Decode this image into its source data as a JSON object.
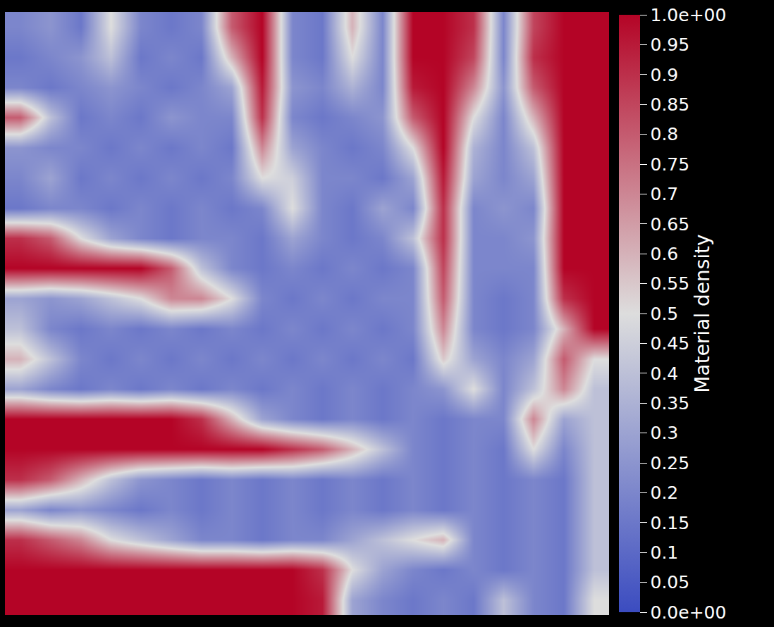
{
  "chart_data": {
    "type": "heatmap",
    "colorbar_title": "Material density",
    "tick_labels": false,
    "colors": [
      "#3b4cc0",
      "#dddddd",
      "#b40426"
    ],
    "zlim": [
      0,
      1
    ],
    "zticks": [
      {
        "value": 0,
        "label": "0.0e+00"
      },
      0.05,
      0.1,
      0.15,
      0.2,
      0.25,
      0.3,
      0.35,
      0.4,
      0.45,
      0.5,
      0.55,
      0.6,
      0.65,
      0.7,
      0.75,
      0.8,
      0.85,
      0.9,
      0.95,
      {
        "value": 1,
        "label": "1.0e+00"
      }
    ],
    "z": [
      [
        0.2,
        0.25,
        0.15,
        0.5,
        0.2,
        0.15,
        0.2,
        0.8,
        1,
        0.2,
        0.15,
        0.6,
        0.2,
        1,
        1,
        0.9,
        0.2,
        0.85,
        1,
        1
      ],
      [
        0.15,
        0.2,
        0.25,
        0.4,
        0.15,
        0.2,
        0.15,
        0.6,
        1,
        0.2,
        0.15,
        0.5,
        0.2,
        1,
        1,
        0.85,
        0.2,
        0.9,
        1,
        1
      ],
      [
        0.2,
        0.15,
        0.2,
        0.25,
        0.2,
        0.15,
        0.2,
        0.3,
        0.95,
        0.25,
        0.2,
        0.35,
        0.2,
        0.95,
        1,
        0.7,
        0.25,
        0.8,
        1,
        1
      ],
      [
        0.8,
        0.4,
        0.15,
        0.2,
        0.15,
        0.25,
        0.2,
        0.2,
        0.9,
        0.2,
        0.15,
        0.2,
        0.25,
        0.8,
        1,
        0.5,
        0.2,
        0.6,
        1,
        1
      ],
      [
        0.25,
        0.2,
        0.2,
        0.15,
        0.2,
        0.15,
        0.2,
        0.15,
        0.7,
        0.3,
        0.2,
        0.15,
        0.2,
        0.5,
        1,
        0.35,
        0.2,
        0.4,
        1,
        1
      ],
      [
        0.2,
        0.3,
        0.15,
        0.2,
        0.15,
        0.2,
        0.15,
        0.2,
        0.5,
        0.45,
        0.2,
        0.2,
        0.15,
        0.3,
        0.95,
        0.3,
        0.2,
        0.3,
        1,
        1
      ],
      [
        0.15,
        0.2,
        0.2,
        0.15,
        0.2,
        0.15,
        0.2,
        0.15,
        0.2,
        0.5,
        0.2,
        0.15,
        0.3,
        0.2,
        0.9,
        0.2,
        0.25,
        0.2,
        1,
        1
      ],
      [
        0.9,
        0.8,
        0.5,
        0.3,
        0.2,
        0.15,
        0.2,
        0.2,
        0.15,
        0.3,
        0.2,
        0.15,
        0.2,
        0.4,
        0.9,
        0.2,
        0.2,
        0.25,
        1,
        1
      ],
      [
        1,
        1,
        1,
        1,
        1,
        0.8,
        0.4,
        0.2,
        0.15,
        0.2,
        0.15,
        0.2,
        0.15,
        0.2,
        0.85,
        0.2,
        0.2,
        0.2,
        1,
        1
      ],
      [
        0.3,
        0.25,
        0.3,
        0.4,
        0.5,
        0.7,
        0.7,
        0.5,
        0.2,
        0.15,
        0.2,
        0.15,
        0.2,
        0.2,
        0.8,
        0.2,
        0.15,
        0.2,
        0.9,
        1
      ],
      [
        0.4,
        0.2,
        0.15,
        0.2,
        0.15,
        0.2,
        0.15,
        0.2,
        0.15,
        0.2,
        0.15,
        0.2,
        0.15,
        0.2,
        0.7,
        0.2,
        0.15,
        0.2,
        0.6,
        1
      ],
      [
        0.6,
        0.4,
        0.2,
        0.15,
        0.2,
        0.15,
        0.2,
        0.15,
        0.2,
        0.15,
        0.2,
        0.15,
        0.2,
        0.15,
        0.55,
        0.3,
        0.2,
        0.3,
        0.8,
        0.5
      ],
      [
        0.3,
        0.2,
        0.15,
        0.2,
        0.15,
        0.2,
        0.15,
        0.2,
        0.15,
        0.2,
        0.15,
        0.2,
        0.15,
        0.2,
        0.25,
        0.5,
        0.2,
        0.4,
        0.7,
        0.4
      ],
      [
        1,
        1,
        1,
        1,
        1,
        1,
        0.9,
        0.6,
        0.3,
        0.2,
        0.15,
        0.2,
        0.15,
        0.2,
        0.15,
        0.2,
        0.2,
        0.7,
        0.3,
        0.4
      ],
      [
        1,
        1,
        1,
        1,
        1,
        1,
        1,
        1,
        1,
        0.9,
        0.8,
        0.6,
        0.4,
        0.2,
        0.15,
        0.2,
        0.15,
        0.5,
        0.2,
        0.4
      ],
      [
        0.9,
        0.8,
        0.6,
        0.4,
        0.25,
        0.2,
        0.15,
        0.2,
        0.15,
        0.2,
        0.15,
        0.2,
        0.15,
        0.2,
        0.15,
        0.2,
        0.15,
        0.2,
        0.15,
        0.4
      ],
      [
        0.3,
        0.2,
        0.25,
        0.2,
        0.15,
        0.2,
        0.15,
        0.2,
        0.15,
        0.2,
        0.15,
        0.2,
        0.15,
        0.2,
        0.15,
        0.2,
        0.15,
        0.2,
        0.15,
        0.4
      ],
      [
        0.9,
        0.8,
        0.7,
        0.5,
        0.4,
        0.3,
        0.2,
        0.2,
        0.15,
        0.2,
        0.2,
        0.3,
        0.4,
        0.5,
        0.6,
        0.2,
        0.15,
        0.2,
        0.15,
        0.4
      ],
      [
        1,
        1,
        1,
        1,
        1,
        1,
        1,
        1,
        1,
        1,
        0.9,
        0.5,
        0.3,
        0.2,
        0.15,
        0.2,
        0.15,
        0.2,
        0.15,
        0.4
      ],
      [
        1,
        1,
        1,
        1,
        1,
        1,
        1,
        1,
        1,
        1,
        0.95,
        0.3,
        0.2,
        0.15,
        0.2,
        0.15,
        0.4,
        0.2,
        0.15,
        0.5
      ]
    ]
  }
}
